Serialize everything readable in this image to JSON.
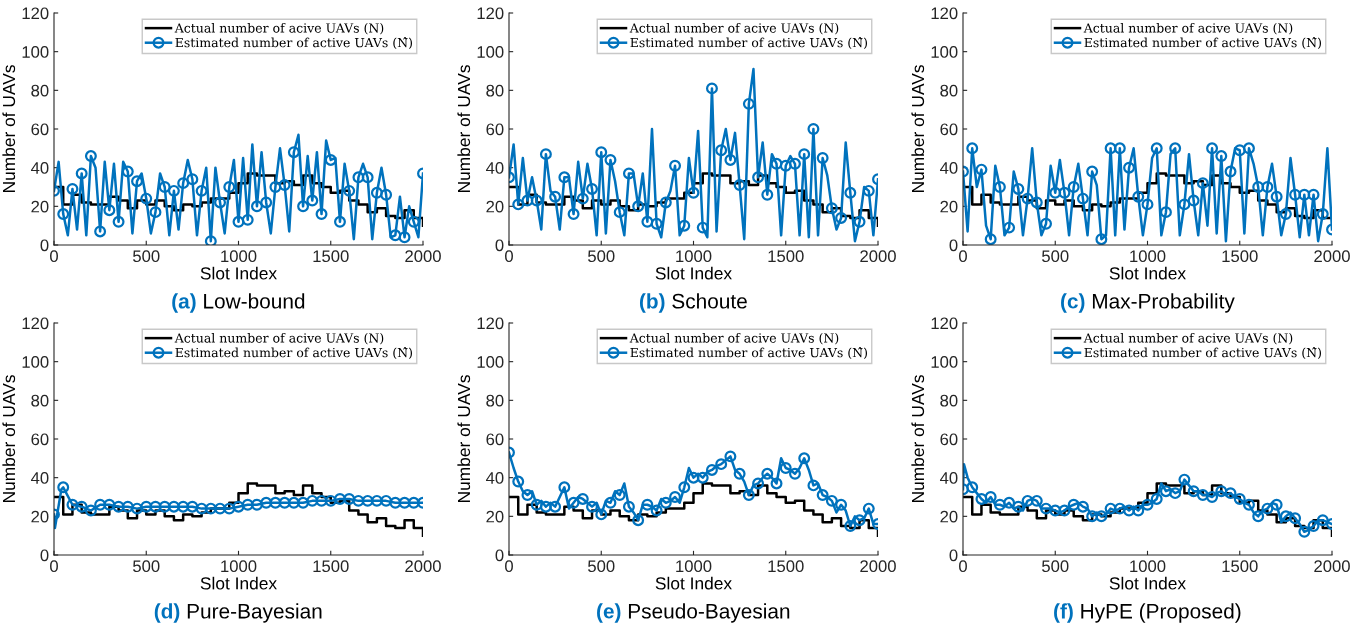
{
  "chart_data": [
    {
      "type": "line",
      "title": "(a) Low-bound",
      "xlabel": "Slot Index",
      "ylabel": "Number of UAVs",
      "xlim": [
        0,
        2000
      ],
      "xticks": [
        0,
        500,
        1000,
        1500,
        2000
      ],
      "ylim": [
        0,
        120
      ],
      "yticks": [
        0,
        20,
        40,
        60,
        80,
        100,
        120
      ],
      "grid": false,
      "legend": "top right",
      "series": [
        {
          "name": "Actual number of acive UAVs (N)",
          "type": "step",
          "color": "#000000",
          "marker": "none",
          "x": [
            0,
            50,
            100,
            150,
            200,
            300,
            350,
            400,
            450,
            500,
            550,
            600,
            650,
            700,
            750,
            800,
            850,
            950,
            1000,
            1050,
            1100,
            1200,
            1250,
            1300,
            1350,
            1400,
            1450,
            1500,
            1550,
            1600,
            1650,
            1700,
            1750,
            1800,
            1850,
            1900,
            1950,
            2000
          ],
          "values": [
            30,
            21,
            26,
            22,
            21,
            25,
            23,
            19,
            23,
            21,
            23,
            20,
            18,
            21,
            20,
            22,
            24,
            27,
            32,
            37,
            36,
            32,
            33,
            31,
            36,
            32,
            30,
            27,
            28,
            23,
            21,
            17,
            19,
            15,
            14,
            18,
            14,
            10
          ]
        },
        {
          "name": "Estimated number of active UAVs (N̂)",
          "type": "line",
          "color": "#0072bd",
          "marker": "circle",
          "x": [
            0,
            25,
            50,
            75,
            100,
            125,
            150,
            175,
            200,
            225,
            250,
            275,
            300,
            325,
            350,
            375,
            400,
            425,
            450,
            475,
            500,
            525,
            550,
            575,
            600,
            625,
            650,
            675,
            700,
            725,
            750,
            775,
            800,
            825,
            850,
            875,
            900,
            925,
            950,
            975,
            1000,
            1025,
            1050,
            1075,
            1100,
            1125,
            1150,
            1175,
            1200,
            1225,
            1250,
            1275,
            1300,
            1325,
            1350,
            1375,
            1400,
            1425,
            1450,
            1475,
            1500,
            1525,
            1550,
            1575,
            1600,
            1625,
            1650,
            1675,
            1700,
            1725,
            1750,
            1775,
            1800,
            1825,
            1850,
            1875,
            1900,
            1925,
            1950,
            1975,
            2000
          ],
          "values": [
            28,
            43,
            16,
            5,
            29,
            8,
            37,
            5,
            46,
            40,
            7,
            43,
            18,
            42,
            12,
            43,
            38,
            6,
            33,
            37,
            24,
            6,
            17,
            37,
            30,
            5,
            28,
            8,
            32,
            44,
            34,
            5,
            28,
            40,
            2,
            40,
            22,
            6,
            30,
            44,
            12,
            45,
            13,
            52,
            20,
            48,
            22,
            6,
            30,
            50,
            31,
            7,
            48,
            57,
            20,
            46,
            23,
            48,
            16,
            54,
            44,
            45,
            12,
            42,
            28,
            3,
            35,
            42,
            35,
            3,
            27,
            40,
            26,
            4,
            5,
            25,
            4,
            20,
            12,
            4,
            37
          ]
        }
      ]
    },
    {
      "type": "line",
      "title": "(b) Schoute",
      "xlabel": "Slot Index",
      "ylabel": "Number of UAVs",
      "xlim": [
        0,
        2000
      ],
      "xticks": [
        0,
        500,
        1000,
        1500,
        2000
      ],
      "ylim": [
        0,
        120
      ],
      "yticks": [
        0,
        20,
        40,
        60,
        80,
        100,
        120
      ],
      "grid": false,
      "legend": "top right",
      "series": [
        {
          "name": "Actual number of acive UAVs (N)",
          "type": "step",
          "color": "#000000",
          "marker": "none",
          "x": [
            0,
            50,
            100,
            150,
            200,
            300,
            350,
            400,
            450,
            500,
            550,
            600,
            650,
            700,
            750,
            800,
            850,
            950,
            1000,
            1050,
            1100,
            1200,
            1250,
            1300,
            1350,
            1400,
            1450,
            1500,
            1550,
            1600,
            1650,
            1700,
            1750,
            1800,
            1850,
            1900,
            1950,
            2000
          ],
          "values": [
            30,
            21,
            26,
            22,
            21,
            25,
            23,
            19,
            23,
            21,
            23,
            20,
            18,
            21,
            20,
            22,
            24,
            27,
            32,
            37,
            36,
            32,
            33,
            31,
            36,
            32,
            30,
            27,
            28,
            23,
            21,
            17,
            19,
            15,
            14,
            18,
            14,
            10
          ]
        },
        {
          "name": "Estimated number of active UAVs (N̂)",
          "type": "line",
          "color": "#0072bd",
          "marker": "circle",
          "x": [
            0,
            25,
            50,
            75,
            100,
            125,
            150,
            175,
            200,
            225,
            250,
            275,
            300,
            325,
            350,
            375,
            400,
            425,
            450,
            475,
            500,
            525,
            550,
            575,
            600,
            625,
            650,
            675,
            700,
            725,
            750,
            775,
            800,
            825,
            850,
            875,
            900,
            925,
            950,
            975,
            1000,
            1025,
            1050,
            1075,
            1100,
            1125,
            1150,
            1175,
            1200,
            1225,
            1250,
            1275,
            1300,
            1325,
            1350,
            1375,
            1400,
            1425,
            1450,
            1475,
            1500,
            1525,
            1550,
            1575,
            1600,
            1625,
            1650,
            1675,
            1700,
            1725,
            1750,
            1775,
            1800,
            1825,
            1850,
            1875,
            1900,
            1925,
            1950,
            1975,
            2000
          ],
          "values": [
            35,
            52,
            21,
            45,
            23,
            35,
            23,
            8,
            47,
            28,
            25,
            8,
            35,
            35,
            16,
            43,
            24,
            42,
            29,
            5,
            48,
            6,
            44,
            33,
            17,
            5,
            37,
            37,
            20,
            37,
            12,
            60,
            11,
            4,
            22,
            28,
            41,
            5,
            10,
            45,
            27,
            59,
            9,
            4,
            81,
            7,
            49,
            60,
            44,
            58,
            31,
            3,
            73,
            91,
            35,
            53,
            26,
            47,
            42,
            5,
            41,
            46,
            42,
            5,
            47,
            4,
            60,
            5,
            45,
            36,
            19,
            8,
            14,
            53,
            27,
            2,
            12,
            30,
            28,
            5,
            34
          ]
        }
      ]
    },
    {
      "type": "line",
      "title": "(c) Max-Probability",
      "xlabel": "Slot Index",
      "ylabel": "Number of UAVs",
      "xlim": [
        0,
        2000
      ],
      "xticks": [
        0,
        500,
        1000,
        1500,
        2000
      ],
      "ylim": [
        0,
        120
      ],
      "yticks": [
        0,
        20,
        40,
        60,
        80,
        100,
        120
      ],
      "grid": false,
      "legend": "top right",
      "series": [
        {
          "name": "Actual number of acive UAVs (N)",
          "type": "step",
          "color": "#000000",
          "marker": "none",
          "x": [
            0,
            50,
            100,
            150,
            200,
            300,
            350,
            400,
            450,
            500,
            550,
            600,
            650,
            700,
            750,
            800,
            850,
            950,
            1000,
            1050,
            1100,
            1200,
            1250,
            1300,
            1350,
            1400,
            1450,
            1500,
            1550,
            1600,
            1650,
            1700,
            1750,
            1800,
            1850,
            1900,
            1950,
            2000
          ],
          "values": [
            30,
            21,
            26,
            22,
            21,
            25,
            23,
            19,
            23,
            21,
            23,
            20,
            18,
            21,
            20,
            22,
            24,
            27,
            32,
            37,
            36,
            32,
            33,
            31,
            36,
            32,
            30,
            27,
            28,
            23,
            21,
            17,
            19,
            15,
            14,
            18,
            14,
            14
          ]
        },
        {
          "name": "Estimated number of active UAVs (N̂)",
          "type": "line",
          "color": "#0072bd",
          "marker": "circle",
          "x": [
            0,
            25,
            50,
            75,
            100,
            125,
            150,
            175,
            200,
            225,
            250,
            275,
            300,
            325,
            350,
            375,
            400,
            425,
            450,
            475,
            500,
            525,
            550,
            575,
            600,
            625,
            650,
            675,
            700,
            725,
            750,
            775,
            800,
            825,
            850,
            875,
            900,
            925,
            950,
            975,
            1000,
            1025,
            1050,
            1075,
            1100,
            1125,
            1150,
            1175,
            1200,
            1225,
            1250,
            1275,
            1300,
            1325,
            1350,
            1375,
            1400,
            1425,
            1450,
            1475,
            1500,
            1525,
            1550,
            1575,
            1600,
            1625,
            1650,
            1675,
            1700,
            1725,
            1750,
            1775,
            1800,
            1825,
            1850,
            1875,
            1900,
            1925,
            1950,
            1975,
            2000
          ],
          "values": [
            38,
            7,
            50,
            30,
            39,
            10,
            3,
            41,
            30,
            5,
            9,
            38,
            29,
            5,
            24,
            50,
            22,
            5,
            11,
            41,
            27,
            44,
            27,
            5,
            30,
            42,
            24,
            5,
            38,
            31,
            3,
            5,
            50,
            5,
            50,
            8,
            40,
            50,
            25,
            5,
            21,
            45,
            50,
            5,
            17,
            47,
            50,
            5,
            21,
            47,
            23,
            5,
            32,
            10,
            50,
            6,
            46,
            2,
            38,
            50,
            49,
            6,
            50,
            42,
            30,
            5,
            30,
            42,
            25,
            5,
            16,
            45,
            26,
            4,
            26,
            5,
            26,
            2,
            16,
            50,
            8
          ]
        }
      ]
    },
    {
      "type": "line",
      "title": "(d) Pure-Bayesian",
      "xlabel": "Slot Index",
      "ylabel": "Number of UAVs",
      "xlim": [
        0,
        2000
      ],
      "xticks": [
        0,
        500,
        1000,
        1500,
        2000
      ],
      "ylim": [
        0,
        120
      ],
      "yticks": [
        0,
        20,
        40,
        60,
        80,
        100,
        120
      ],
      "grid": false,
      "legend": "top right",
      "series": [
        {
          "name": "Actual number of acive UAVs (N)",
          "type": "step",
          "color": "#000000",
          "marker": "none",
          "x": [
            0,
            50,
            100,
            150,
            200,
            300,
            350,
            400,
            450,
            500,
            550,
            600,
            650,
            700,
            750,
            800,
            850,
            950,
            1000,
            1050,
            1100,
            1200,
            1250,
            1300,
            1350,
            1400,
            1450,
            1500,
            1550,
            1600,
            1650,
            1700,
            1750,
            1800,
            1850,
            1900,
            1950,
            2000
          ],
          "values": [
            30,
            21,
            26,
            22,
            21,
            25,
            23,
            19,
            23,
            21,
            23,
            20,
            18,
            21,
            20,
            22,
            24,
            27,
            32,
            37,
            36,
            32,
            33,
            31,
            36,
            32,
            30,
            27,
            28,
            23,
            21,
            17,
            19,
            15,
            14,
            18,
            14,
            10
          ]
        },
        {
          "name": "Estimated number of active UAVs (N̂)",
          "type": "line",
          "color": "#0072bd",
          "marker": "circle",
          "x": [
            0,
            5,
            40,
            50,
            100,
            150,
            200,
            250,
            300,
            350,
            400,
            450,
            500,
            550,
            600,
            650,
            700,
            750,
            800,
            850,
            900,
            950,
            1000,
            1050,
            1100,
            1150,
            1200,
            1250,
            1300,
            1350,
            1400,
            1450,
            1500,
            1550,
            1600,
            1650,
            1700,
            1750,
            1800,
            1850,
            1900,
            1950,
            2000
          ],
          "values": [
            21,
            14,
            34,
            35,
            26,
            25,
            23,
            26,
            26,
            25,
            25,
            24,
            25,
            25,
            25,
            25,
            25,
            25,
            24,
            24,
            24,
            24,
            25,
            26,
            26,
            27,
            27,
            27,
            27,
            27,
            28,
            28,
            28,
            29,
            29,
            28,
            28,
            28,
            28,
            27,
            27,
            27,
            27
          ]
        }
      ]
    },
    {
      "type": "line",
      "title": "(e) Pseudo-Bayesian",
      "xlabel": "Slot Index",
      "ylabel": "Number of UAVs",
      "xlim": [
        0,
        2000
      ],
      "xticks": [
        0,
        500,
        1000,
        1500,
        2000
      ],
      "ylim": [
        0,
        120
      ],
      "yticks": [
        0,
        20,
        40,
        60,
        80,
        100,
        120
      ],
      "grid": false,
      "legend": "top right",
      "series": [
        {
          "name": "Actual number of acive UAVs (N)",
          "type": "step",
          "color": "#000000",
          "marker": "none",
          "x": [
            0,
            50,
            100,
            150,
            200,
            300,
            350,
            400,
            450,
            500,
            550,
            600,
            650,
            700,
            750,
            800,
            850,
            950,
            1000,
            1050,
            1100,
            1200,
            1250,
            1300,
            1350,
            1400,
            1450,
            1500,
            1550,
            1600,
            1650,
            1700,
            1750,
            1800,
            1850,
            1900,
            1950,
            2000
          ],
          "values": [
            30,
            21,
            26,
            22,
            21,
            25,
            23,
            19,
            23,
            21,
            23,
            20,
            18,
            21,
            20,
            22,
            24,
            27,
            32,
            37,
            36,
            32,
            33,
            31,
            36,
            32,
            30,
            27,
            28,
            23,
            21,
            17,
            19,
            15,
            14,
            18,
            14,
            10
          ]
        },
        {
          "name": "Estimated number of active UAVs (N̂)",
          "type": "line",
          "color": "#0072bd",
          "marker": "circle",
          "x": [
            0,
            25,
            50,
            75,
            100,
            125,
            150,
            175,
            200,
            225,
            250,
            275,
            300,
            325,
            350,
            375,
            400,
            425,
            450,
            475,
            500,
            525,
            550,
            575,
            600,
            625,
            650,
            675,
            700,
            725,
            750,
            775,
            800,
            825,
            850,
            875,
            900,
            925,
            950,
            975,
            1000,
            1025,
            1050,
            1075,
            1100,
            1125,
            1150,
            1175,
            1200,
            1225,
            1250,
            1275,
            1300,
            1325,
            1350,
            1375,
            1400,
            1425,
            1450,
            1475,
            1500,
            1525,
            1550,
            1575,
            1600,
            1625,
            1650,
            1675,
            1700,
            1725,
            1750,
            1775,
            1800,
            1825,
            1850,
            1875,
            1900,
            1925,
            1950,
            1975,
            2000
          ],
          "values": [
            53,
            45,
            38,
            33,
            31,
            33,
            26,
            28,
            25,
            27,
            25,
            30,
            35,
            24,
            27,
            30,
            29,
            27,
            25,
            27,
            21,
            28,
            27,
            33,
            31,
            37,
            25,
            22,
            18,
            26,
            26,
            25,
            23,
            29,
            27,
            28,
            30,
            27,
            35,
            45,
            40,
            42,
            40,
            43,
            44,
            46,
            47,
            49,
            51,
            44,
            42,
            38,
            31,
            36,
            37,
            40,
            42,
            40,
            37,
            50,
            45,
            44,
            42,
            45,
            50,
            44,
            36,
            37,
            31,
            30,
            28,
            22,
            26,
            23,
            15,
            20,
            18,
            19,
            24,
            16,
            16
          ]
        }
      ]
    },
    {
      "type": "line",
      "title": "(f) HyPE (Proposed)",
      "xlabel": "Slot Index",
      "ylabel": "Number of UAVs",
      "xlim": [
        0,
        2000
      ],
      "xticks": [
        0,
        500,
        1000,
        1500,
        2000
      ],
      "ylim": [
        0,
        120
      ],
      "yticks": [
        0,
        20,
        40,
        60,
        80,
        100,
        120
      ],
      "grid": false,
      "legend": "top right",
      "series": [
        {
          "name": "Actual number of acive UAVs (N)",
          "type": "step",
          "color": "#000000",
          "marker": "none",
          "x": [
            0,
            50,
            100,
            150,
            200,
            300,
            350,
            400,
            450,
            500,
            550,
            600,
            650,
            700,
            750,
            800,
            850,
            950,
            1000,
            1050,
            1100,
            1200,
            1250,
            1300,
            1350,
            1400,
            1450,
            1500,
            1550,
            1600,
            1650,
            1700,
            1750,
            1800,
            1850,
            1900,
            1950,
            2000
          ],
          "values": [
            30,
            21,
            26,
            22,
            21,
            25,
            23,
            19,
            23,
            21,
            23,
            20,
            18,
            21,
            20,
            22,
            24,
            27,
            32,
            37,
            36,
            32,
            33,
            31,
            36,
            32,
            30,
            27,
            28,
            23,
            21,
            17,
            19,
            15,
            14,
            18,
            14,
            10
          ]
        },
        {
          "name": "Estimated number of active UAVs (N̂)",
          "type": "line",
          "color": "#0072bd",
          "marker": "circle",
          "x": [
            0,
            5,
            25,
            50,
            75,
            100,
            125,
            150,
            175,
            200,
            225,
            250,
            275,
            300,
            325,
            350,
            375,
            400,
            425,
            450,
            475,
            500,
            525,
            550,
            575,
            600,
            625,
            650,
            675,
            700,
            725,
            750,
            775,
            800,
            825,
            850,
            875,
            900,
            925,
            950,
            975,
            1000,
            1025,
            1050,
            1075,
            1100,
            1125,
            1150,
            1175,
            1200,
            1225,
            1250,
            1275,
            1300,
            1325,
            1350,
            1375,
            1400,
            1425,
            1450,
            1475,
            1500,
            1525,
            1550,
            1575,
            1600,
            1625,
            1650,
            1675,
            1700,
            1725,
            1750,
            1775,
            1800,
            1825,
            1850,
            1875,
            1900,
            1925,
            1950,
            1975,
            2000
          ],
          "values": [
            34,
            47,
            40,
            35,
            32,
            29,
            27,
            30,
            26,
            26,
            25,
            27,
            24,
            25,
            23,
            28,
            29,
            28,
            24,
            24,
            24,
            23,
            22,
            23,
            25,
            26,
            27,
            25,
            24,
            20,
            22,
            20,
            21,
            24,
            23,
            24,
            25,
            23,
            25,
            23,
            26,
            26,
            27,
            29,
            37,
            33,
            34,
            32,
            33,
            39,
            36,
            33,
            33,
            31,
            31,
            30,
            32,
            33,
            31,
            32,
            30,
            29,
            27,
            26,
            22,
            20,
            23,
            24,
            27,
            26,
            17,
            20,
            22,
            19,
            16,
            12,
            13,
            15,
            18,
            18,
            17,
            16
          ]
        }
      ]
    }
  ]
}
